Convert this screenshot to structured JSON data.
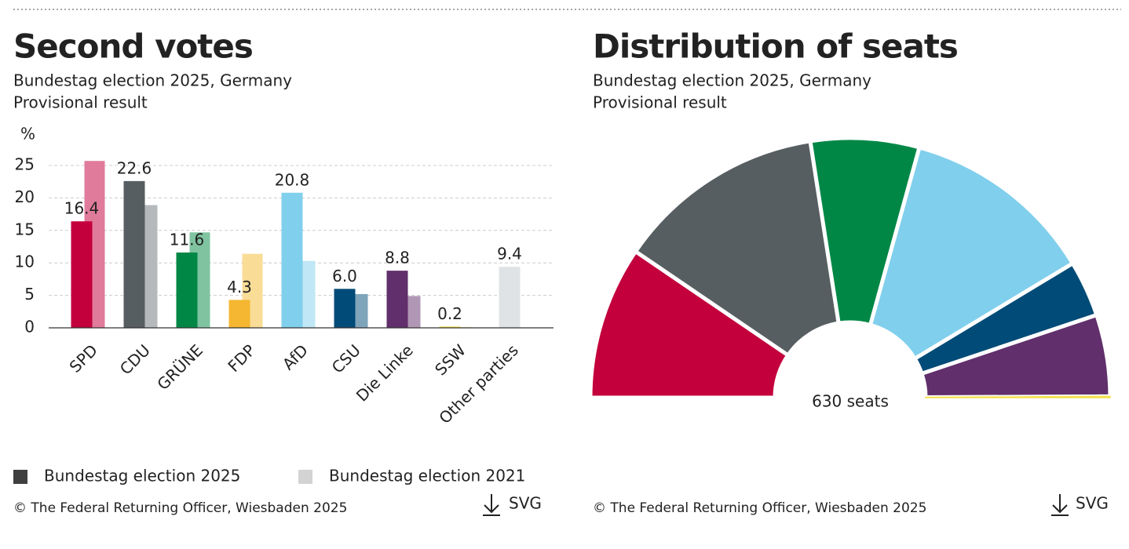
{
  "chart_data": [
    {
      "type": "bar",
      "title": "Second votes",
      "subtitle": [
        "Bundestag election 2025, Germany",
        "Provisional result"
      ],
      "y_label": "%",
      "categories": [
        "SPD",
        "CDU",
        "GRÜNE",
        "FDP",
        "AfD",
        "CSU",
        "Die Linke",
        "SSW",
        "Other parties"
      ],
      "series": [
        {
          "name": "Bundestag election 2025",
          "color": "#3f3f3f",
          "values": [
            16.4,
            22.6,
            11.6,
            4.3,
            20.8,
            6.0,
            8.8,
            0.2,
            9.4
          ],
          "value_labels": [
            "16.4",
            "22.6",
            "11.6",
            "4.3",
            "20.8",
            "6.0",
            "8.8",
            "0.2",
            "9.4"
          ],
          "colors": [
            "#c3003c",
            "#575e61",
            "#008746",
            "#f5b731",
            "#80cfec",
            "#004b77",
            "#612f6b",
            "#f4e04d",
            "#c2c7ca"
          ]
        },
        {
          "name": "Bundestag election 2021",
          "color": "#d3d3d3",
          "values": [
            25.7,
            18.9,
            14.7,
            11.4,
            10.3,
            5.2,
            4.9,
            0.1,
            null
          ],
          "colors": [
            "#e07b9c",
            "#b5b9bb",
            "#7fc3a0",
            "#f9dc96",
            "#c0e7f5",
            "#7fa5bb",
            "#b097b5",
            "#f9efa6",
            "#e0e3e5"
          ]
        }
      ],
      "ylim": [
        0,
        27
      ],
      "yticks": [
        0,
        5,
        10,
        15,
        20,
        25
      ],
      "grid": true,
      "source": "© The Federal Returning Officer, Wiesbaden 2025",
      "download": "SVG"
    },
    {
      "type": "semicircle",
      "title": "Distribution of seats",
      "subtitle": [
        "Bundestag election 2025, Germany",
        "Provisional result"
      ],
      "values": [
        120,
        164,
        85,
        152,
        44,
        64,
        1
      ],
      "colors": [
        "#c3003c",
        "#575e61",
        "#008746",
        "#80cfec",
        "#004b77",
        "#612f6b",
        "#f4e04d"
      ],
      "total_label": "630 seats",
      "source": "© The Federal Returning Officer, Wiesbaden 2025",
      "download": "SVG"
    }
  ]
}
